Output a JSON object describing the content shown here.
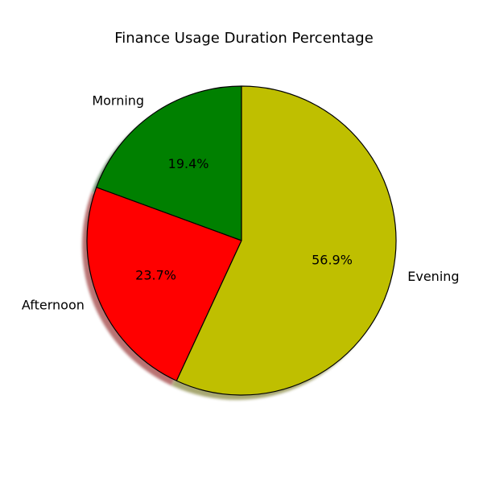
{
  "chart_data": {
    "type": "pie",
    "title": "Finance Usage Duration Percentage",
    "categories": [
      "Morning",
      "Afternoon",
      "Evening"
    ],
    "values": [
      19.4,
      23.7,
      56.9
    ],
    "value_labels": [
      "19.4%",
      "23.7%",
      "56.9%"
    ],
    "colors": [
      "#008000",
      "#ff0000",
      "#bfbf00"
    ],
    "start_angle_deg": 90,
    "direction": "counterclockwise",
    "shadow": true,
    "edge_color": "#000000"
  }
}
